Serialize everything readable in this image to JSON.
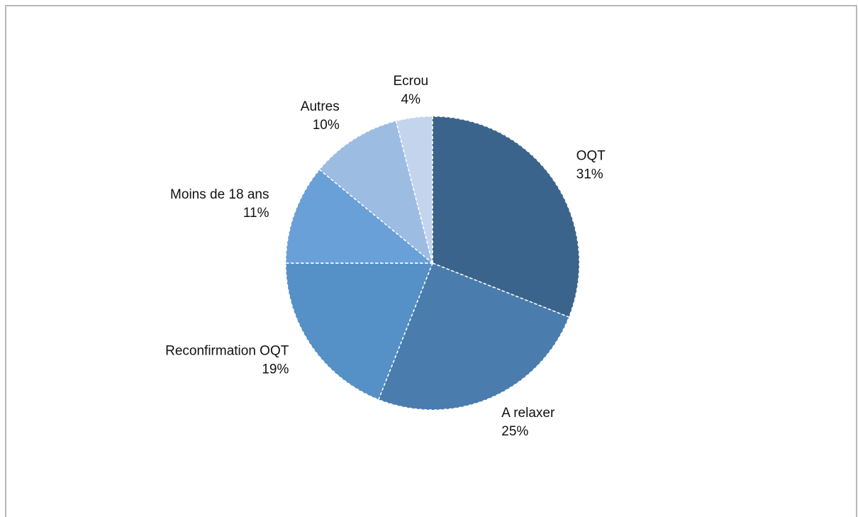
{
  "chart_data": {
    "type": "pie",
    "categories": [
      "OQT",
      "A relaxer",
      "Reconfirmation OQT",
      "Moins de 18 ans",
      "Autres",
      "Ecrou"
    ],
    "values": [
      31,
      25,
      19,
      11,
      10,
      4
    ],
    "value_labels": [
      "31%",
      "25%",
      "19%",
      "11%",
      "10%",
      "4%"
    ],
    "colors": [
      "#3b648c",
      "#4a7cad",
      "#5590c6",
      "#6aa0d8",
      "#9dbce2",
      "#c3d5ed"
    ]
  }
}
